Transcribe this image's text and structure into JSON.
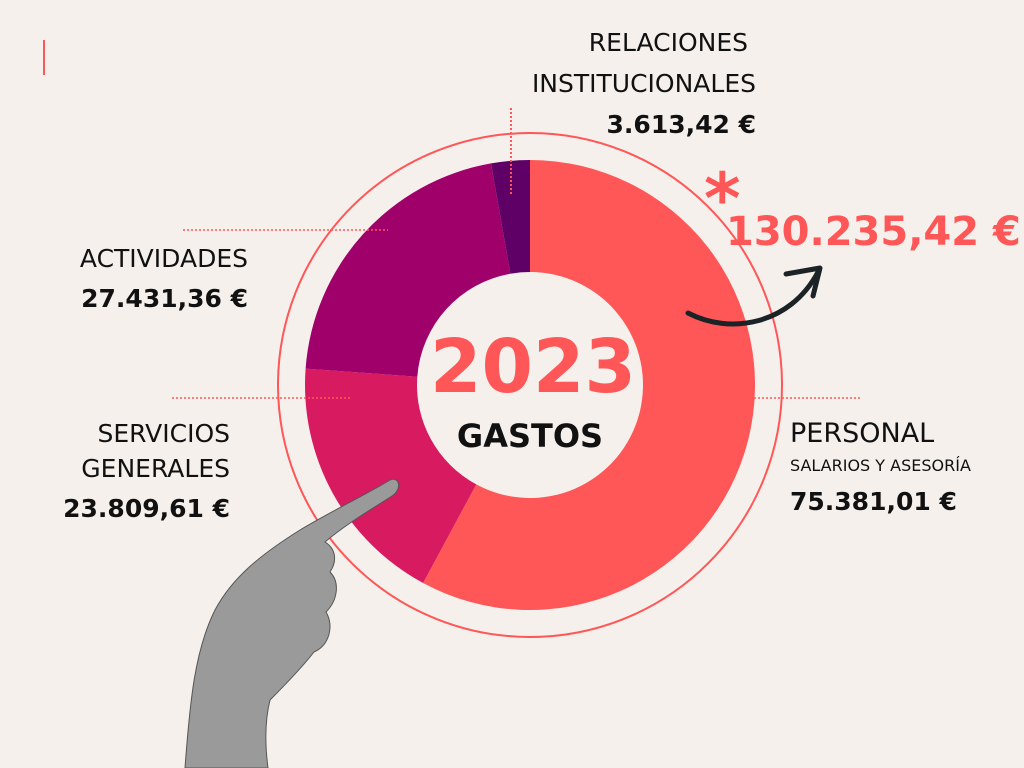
{
  "chart_data": {
    "type": "pie",
    "variant": "donut",
    "title": "2023",
    "subtitle": "GASTOS",
    "total_label": "130.235,42 €",
    "total_marker": "*",
    "slices": [
      {
        "name": "PERSONAL",
        "sublabel": "SALARIOS Y ASESORÍA",
        "value": 75381.01,
        "value_label": "75.381,01 €",
        "color": "#ff5757"
      },
      {
        "name": "SERVICIOS GENERALES",
        "line1": "SERVICIOS",
        "line2": "GENERALES",
        "value": 23809.61,
        "value_label": "23.809,61 €",
        "color": "#d81b60"
      },
      {
        "name": "ACTIVIDADES",
        "value": 27431.36,
        "value_label": "27.431,36 €",
        "color": "#a0006a"
      },
      {
        "name": "RELACIONES INSTITUCIONALES",
        "line1": "RELACIONES",
        "line2": "INSTITUCIONALES",
        "value": 3613.42,
        "value_label": "3.613,42 €",
        "color": "#5e0066"
      }
    ],
    "accent": "#ff5757"
  }
}
